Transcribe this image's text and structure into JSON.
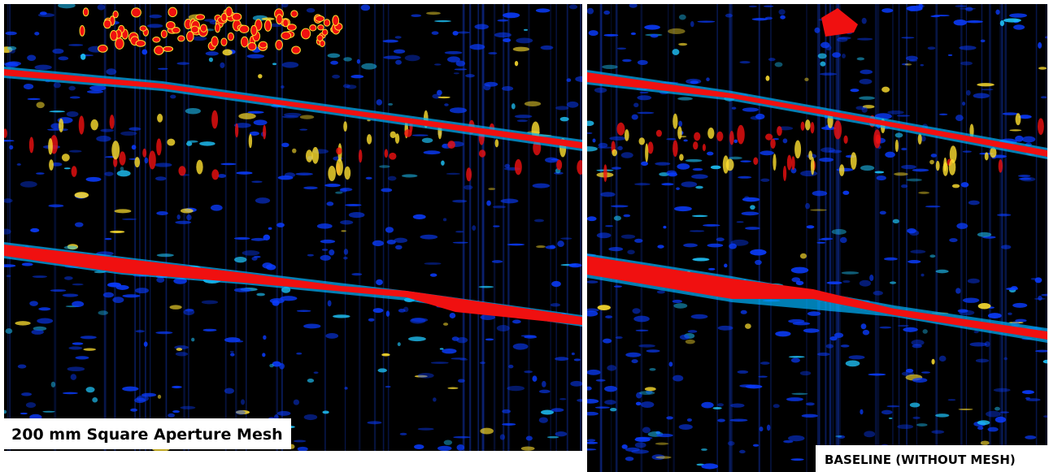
{
  "left_panel": {
    "label": "200 mm Square Aperture Mesh"
  },
  "right_panel": {
    "label": "BASELINE (WITHOUT MESH)"
  }
}
